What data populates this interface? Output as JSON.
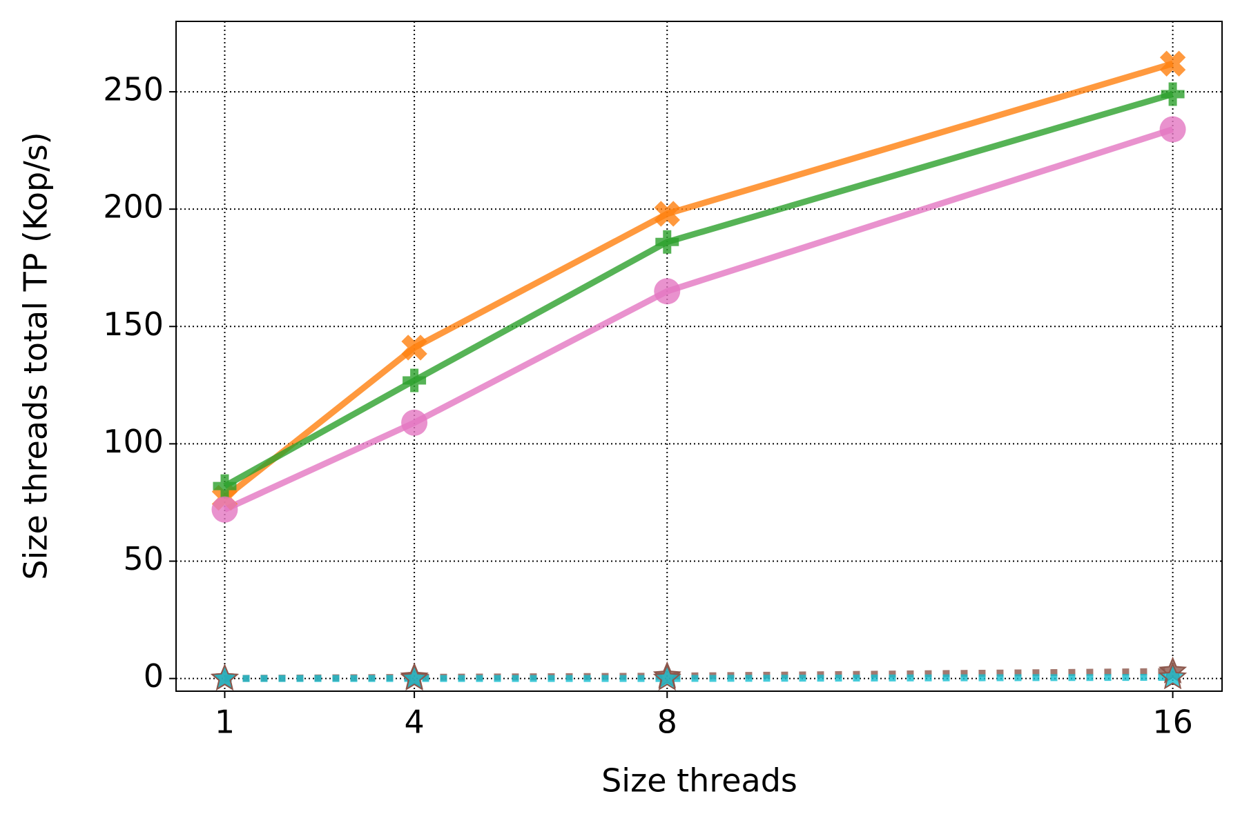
{
  "chart_data": {
    "type": "line",
    "x_label": "Size threads",
    "y_label": "Size threads total TP (Kop/s)",
    "x": [
      1,
      4,
      8,
      16
    ],
    "xlim": [
      0.23,
      16.78
    ],
    "xticks": [
      1,
      4,
      8,
      16
    ],
    "ylim": [
      -5.4,
      280
    ],
    "yticks": [
      0,
      50,
      100,
      150,
      200,
      250
    ],
    "grid": true,
    "series": [
      {
        "color": "#ff7f0e",
        "marker": "x",
        "linestyle": "solid",
        "values": [
          77,
          141,
          198,
          262
        ]
      },
      {
        "color": "#2ca02c",
        "marker": "plus",
        "linestyle": "solid",
        "values": [
          82,
          127,
          186,
          249
        ]
      },
      {
        "color": "#e377c2",
        "marker": "circle",
        "linestyle": "solid",
        "values": [
          72,
          109,
          165,
          234
        ]
      },
      {
        "color": "#8c564b",
        "marker": "star",
        "linestyle": "dotted",
        "values": [
          0,
          0.5,
          1,
          3
        ]
      },
      {
        "color": "#17becf",
        "marker": "star",
        "linestyle": "dotted",
        "values": [
          0,
          0,
          0,
          0.5
        ]
      }
    ]
  }
}
